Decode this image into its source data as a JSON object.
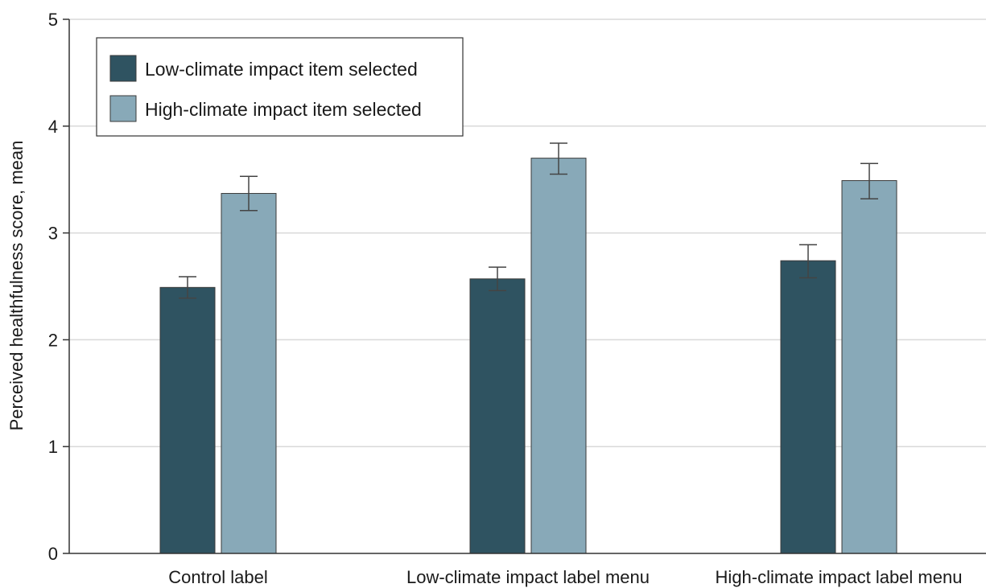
{
  "chart_data": {
    "type": "bar",
    "categories": [
      "Control label",
      "Low-climate impact label menu",
      "High-climate impact label menu"
    ],
    "series": [
      {
        "name": "Low-climate impact item selected",
        "color": "#2f5361",
        "values": [
          2.49,
          2.57,
          2.74
        ],
        "err_low": [
          2.39,
          2.46,
          2.58
        ],
        "err_high": [
          2.59,
          2.68,
          2.89
        ]
      },
      {
        "name": "High-climate impact item selected",
        "color": "#88a9b8",
        "values": [
          3.37,
          3.7,
          3.49
        ],
        "err_low": [
          3.21,
          3.55,
          3.32
        ],
        "err_high": [
          3.53,
          3.84,
          3.65
        ]
      }
    ],
    "title": "",
    "xlabel": "",
    "ylabel": "Perceived healthfulness score, mean",
    "ylim": [
      0,
      5
    ],
    "yticks": [
      0,
      1,
      2,
      3,
      4,
      5
    ],
    "grid": true,
    "legend_position": "top-left"
  }
}
